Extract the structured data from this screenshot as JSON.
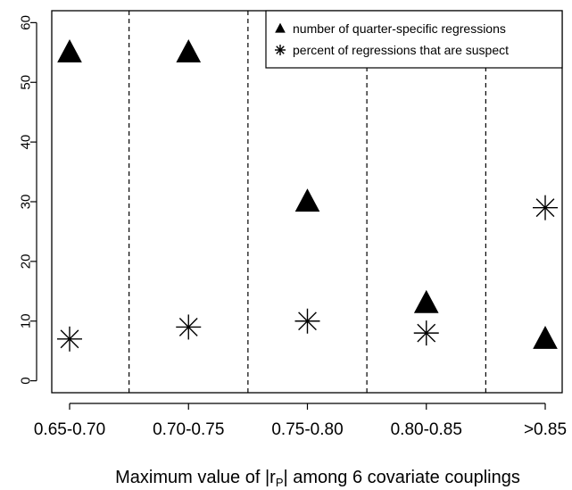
{
  "chart_data": {
    "type": "scatter",
    "categories": [
      "0.65-0.70",
      "0.70-0.75",
      "0.75-0.80",
      "0.80-0.85",
      ">0.85"
    ],
    "series": [
      {
        "name": "number of quarter-specific regressions",
        "marker": "filled-triangle",
        "values": [
          55,
          55,
          30,
          13,
          7
        ]
      },
      {
        "name": "percent of regressions that are suspect",
        "marker": "asterisk",
        "values": [
          7,
          9,
          10,
          8,
          29
        ]
      }
    ],
    "title": "",
    "xlabel_main": "Maximum value of |r",
    "xlabel_sub": "P",
    "xlabel_rest": "| among 6 covariate couplings",
    "ylabel": "",
    "yticks": [
      0,
      10,
      20,
      30,
      40,
      50,
      60
    ],
    "ylim": [
      -2,
      62
    ],
    "category_dividers": true,
    "grid": false,
    "legend_position": "top-right",
    "colors": {
      "ink": "#000000",
      "background": "#ffffff"
    }
  }
}
